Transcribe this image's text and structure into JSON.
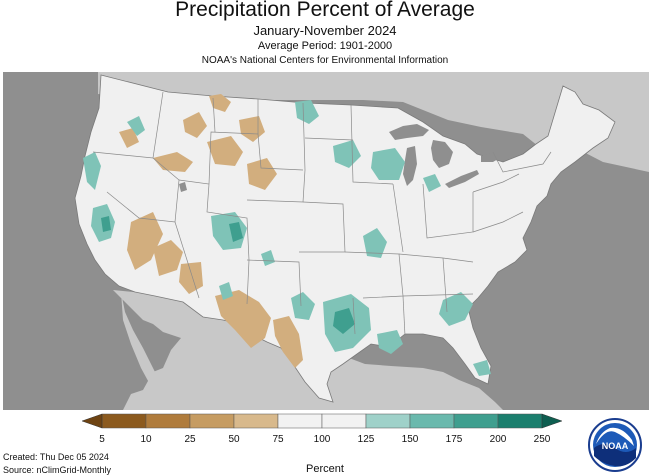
{
  "title": "Precipitation Percent of Average",
  "subtitle": "January-November 2024",
  "period": "Average Period: 1901-2000",
  "organization": "NOAA's National Centers for Environmental Information",
  "created": "Created: Thu Dec 05 2024",
  "source": "Source: nClimGrid-Monthly",
  "legend": {
    "title": "Percent",
    "ticks": [
      "5",
      "10",
      "25",
      "50",
      "75",
      "100",
      "125",
      "150",
      "175",
      "200",
      "250"
    ],
    "colors": [
      "#8c5a1e",
      "#b07c3c",
      "#c69c62",
      "#d8b98c",
      "#f2f2f2",
      "#f2f2f2",
      "#9fd1c9",
      "#6ab9ad",
      "#3f9f8f",
      "#1b7f6e"
    ]
  },
  "logo": {
    "text": "NOAA",
    "icon": "noaa-logo-icon"
  },
  "colors": {
    "background": "#8f8f8f",
    "land": "#f0f0f0",
    "lakes": "#8f8f8f",
    "mexico": "#c8c8c8",
    "dry": "#d2ae7e",
    "wet": "#7fc3b7",
    "very_wet": "#3f9f8f"
  }
}
